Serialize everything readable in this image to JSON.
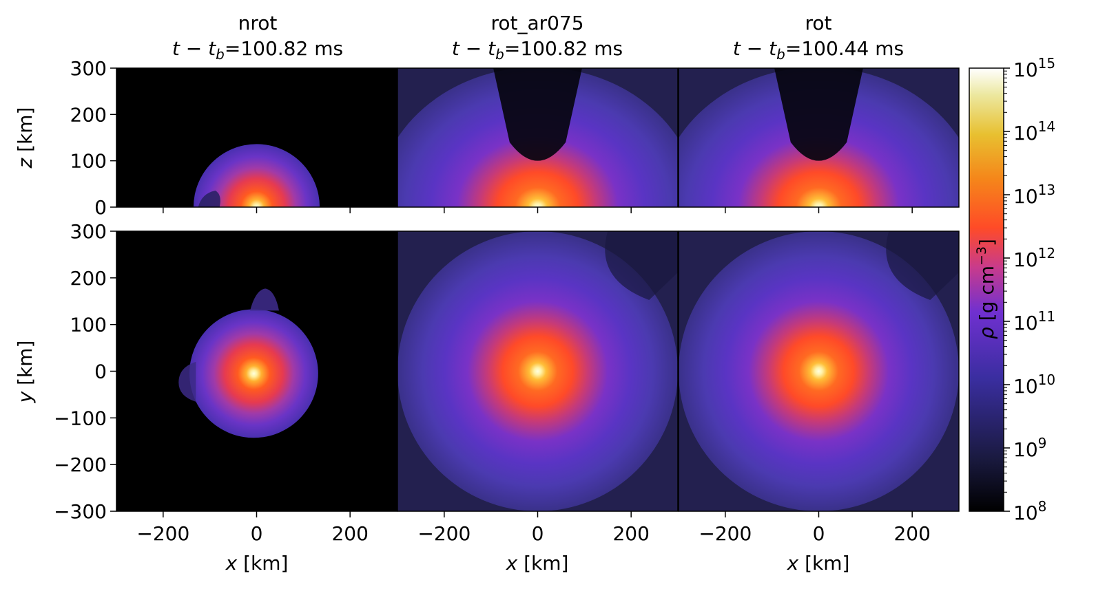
{
  "chart_data": {
    "type": "heatmap",
    "panels": [
      {
        "row": "xz",
        "col": 0,
        "model": "nrot",
        "time_label": "t − t_b=100.82 ms",
        "t_minus_tb_ms": 100.82,
        "profile": "nrot_z"
      },
      {
        "row": "xz",
        "col": 1,
        "model": "rot_ar075",
        "time_label": "t − t_b=100.82 ms",
        "t_minus_tb_ms": 100.82,
        "profile": "rot_z"
      },
      {
        "row": "xz",
        "col": 2,
        "model": "rot",
        "time_label": "t − t_b=100.44 ms",
        "t_minus_tb_ms": 100.44,
        "profile": "rot_z"
      },
      {
        "row": "xy",
        "col": 0,
        "model": "nrot",
        "profile": "nrot_y"
      },
      {
        "row": "xy",
        "col": 1,
        "model": "rot_ar075",
        "profile": "rot_y"
      },
      {
        "row": "xy",
        "col": 2,
        "model": "rot",
        "profile": "rot_y"
      }
    ],
    "titles": [
      {
        "model": "nrot",
        "time": "=100.82 ms"
      },
      {
        "model": "rot_ar075",
        "time": "=100.82 ms"
      },
      {
        "model": "rot",
        "time": "=100.44 ms"
      }
    ],
    "x_axis": {
      "label_var": "x",
      "label_unit": "[km]",
      "range": [
        -300,
        300
      ],
      "ticks": [
        -200,
        0,
        200
      ],
      "tick_labels": [
        "−200",
        "0",
        "200"
      ]
    },
    "z_axis": {
      "label_var": "z",
      "label_unit": "[km]",
      "range": [
        0,
        300
      ],
      "ticks": [
        0,
        100,
        200,
        300
      ],
      "tick_labels": [
        "0",
        "100",
        "200",
        "300"
      ]
    },
    "y_axis": {
      "label_var": "y",
      "label_unit": "[km]",
      "range": [
        -300,
        300
      ],
      "ticks": [
        -300,
        -200,
        -100,
        0,
        100,
        200,
        300
      ],
      "tick_labels": [
        "−300",
        "−200",
        "−100",
        "0",
        "100",
        "200",
        "300"
      ]
    },
    "colorbar": {
      "quantity": "rho",
      "label_symbol": "ρ",
      "label_unit": "[g cm",
      "label_exp": "−3",
      "label_close": "]",
      "scale": "log",
      "range": [
        100000000.0,
        1000000000000000.0
      ],
      "ticks": [
        8,
        9,
        10,
        11,
        12,
        13,
        14,
        15
      ],
      "tick_base": "10",
      "tick_exponents": [
        "8",
        "9",
        "10",
        "11",
        "12",
        "13",
        "14",
        "15"
      ],
      "colormap": "CMRmap-like"
    },
    "colormap_stops": [
      [
        "#000000",
        0.0
      ],
      [
        "#1a1a40",
        0.12
      ],
      [
        "#3a2ea0",
        0.3
      ],
      [
        "#7030d0",
        0.45
      ],
      [
        "#c83b8c",
        0.55
      ],
      [
        "#ff4b27",
        0.64
      ],
      [
        "#f5861a",
        0.75
      ],
      [
        "#e8c030",
        0.85
      ],
      [
        "#ece8a0",
        0.94
      ],
      [
        "#ffffff",
        1.0
      ]
    ],
    "core_density": {
      "nrot_surface_radius_km": 135,
      "rot_extent_km": 300,
      "central_log_rho": 14.8
    }
  }
}
